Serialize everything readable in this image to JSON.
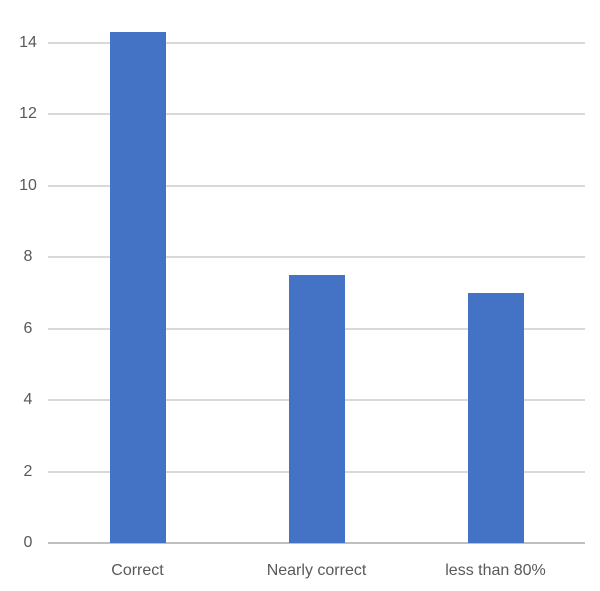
{
  "chart_data": {
    "type": "bar",
    "title": "",
    "xlabel": "",
    "ylabel": "",
    "categories": [
      "Correct",
      "Nearly correct",
      "less than 80%"
    ],
    "values": [
      14.3,
      7.5,
      7.0
    ],
    "yticks": [
      0,
      2,
      4,
      6,
      8,
      10,
      12,
      14
    ],
    "ylim": [
      0,
      14.3
    ],
    "grid": "horizontal",
    "legend": "none",
    "colors": {
      "bar": "#4472C4",
      "gridline": "#D9D9D9",
      "axis_line": "#BFBFBF",
      "tick_label": "#595959",
      "background": "#FFFFFF"
    }
  }
}
